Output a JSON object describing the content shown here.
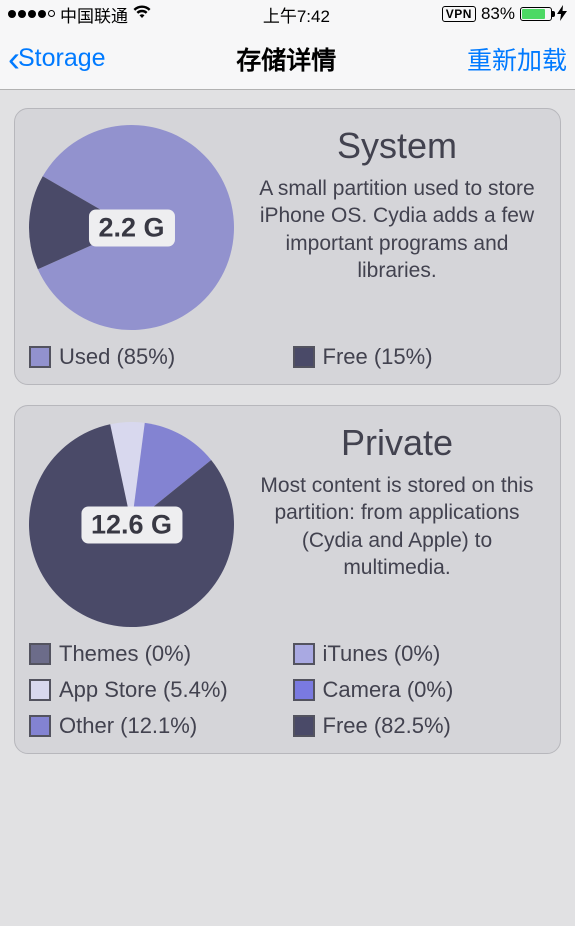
{
  "status_bar": {
    "carrier": "中国联通",
    "time": "上午7:42",
    "vpn": "VPN",
    "battery_percent": "83%",
    "battery_fill_pct": 83,
    "colors": {
      "battery_fill": "#4cd964"
    }
  },
  "nav": {
    "back_label": "Storage",
    "title": "存储详情",
    "right_label": "重新加载"
  },
  "colors": {
    "page_bg": "#e1e1e3",
    "card_bg": "#d5d5d9",
    "card_border": "#b7b7bc",
    "text_primary": "#42424f",
    "accent": "#007aff"
  },
  "cards": [
    {
      "id": "system",
      "title": "System",
      "description": "A small partition used to store iPhone OS. Cydia adds a few important programs and libraries.",
      "center_label": "2.2 G",
      "pie": {
        "type": "pie",
        "slices": [
          {
            "name": "Used",
            "value": 85,
            "color": "#9292ce"
          },
          {
            "name": "Free",
            "value": 15,
            "color": "#4a4a68"
          }
        ],
        "start_angle_deg": -60
      },
      "legend": [
        {
          "label": "Used (85%)",
          "color": "#9292ce"
        },
        {
          "label": "Free (15%)",
          "color": "#4a4a68"
        }
      ]
    },
    {
      "id": "private",
      "title": "Private",
      "description": "Most content is stored on this partition: from applications (Cydia and Apple) to multimedia.",
      "center_label": "12.6 G",
      "pie": {
        "type": "pie",
        "slices": [
          {
            "name": "App Store",
            "value": 5.4,
            "color": "#d8d8ee"
          },
          {
            "name": "Other",
            "value": 12.1,
            "color": "#8383d2"
          },
          {
            "name": "Free",
            "value": 82.5,
            "color": "#4a4a68"
          }
        ],
        "start_angle_deg": -12
      },
      "legend": [
        {
          "label": "Themes (0%)",
          "color": "#6c6c8a"
        },
        {
          "label": "iTunes (0%)",
          "color": "#a9a9e2"
        },
        {
          "label": "App Store (5.4%)",
          "color": "#d8d8ee"
        },
        {
          "label": "Camera (0%)",
          "color": "#7a7ae0"
        },
        {
          "label": "Other (12.1%)",
          "color": "#8383d2"
        },
        {
          "label": "Free (82.5%)",
          "color": "#4a4a68"
        }
      ]
    }
  ]
}
